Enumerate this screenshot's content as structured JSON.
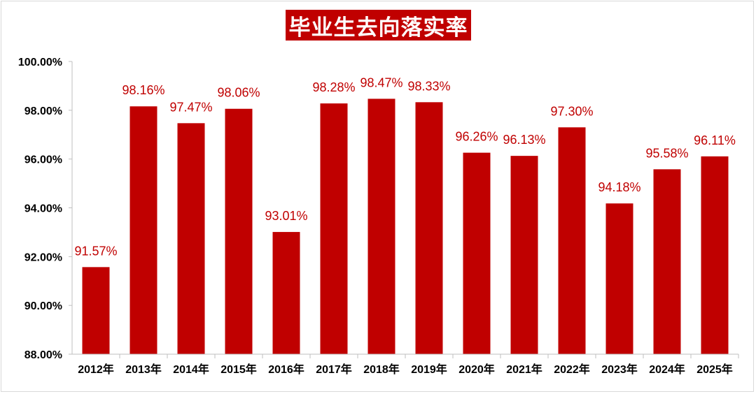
{
  "chart_data": {
    "type": "bar",
    "title": "毕业生去向落实率",
    "xlabel": "",
    "ylabel": "",
    "ylim": [
      88,
      100
    ],
    "yticks": [
      88,
      90,
      92,
      94,
      96,
      98,
      100
    ],
    "ytick_labels": [
      "88.00%",
      "90.00%",
      "92.00%",
      "94.00%",
      "96.00%",
      "98.00%",
      "100.00%"
    ],
    "categories": [
      "2012年",
      "2013年",
      "2014年",
      "2015年",
      "2016年",
      "2017年",
      "2018年",
      "2019年",
      "2020年",
      "2021年",
      "2022年",
      "2023年",
      "2024年",
      "2025年"
    ],
    "values": [
      91.57,
      98.16,
      97.47,
      98.06,
      93.01,
      98.28,
      98.47,
      98.33,
      96.26,
      96.13,
      97.3,
      94.18,
      95.58,
      96.11
    ],
    "data_labels": [
      "91.57%",
      "98.16%",
      "97.47%",
      "98.06%",
      "93.01%",
      "98.28%",
      "98.47%",
      "98.33%",
      "96.26%",
      "96.13%",
      "97.30%",
      "94.18%",
      "95.58%",
      "96.11%"
    ],
    "bar_color": "#c00000",
    "grid": false,
    "legend": "none"
  }
}
